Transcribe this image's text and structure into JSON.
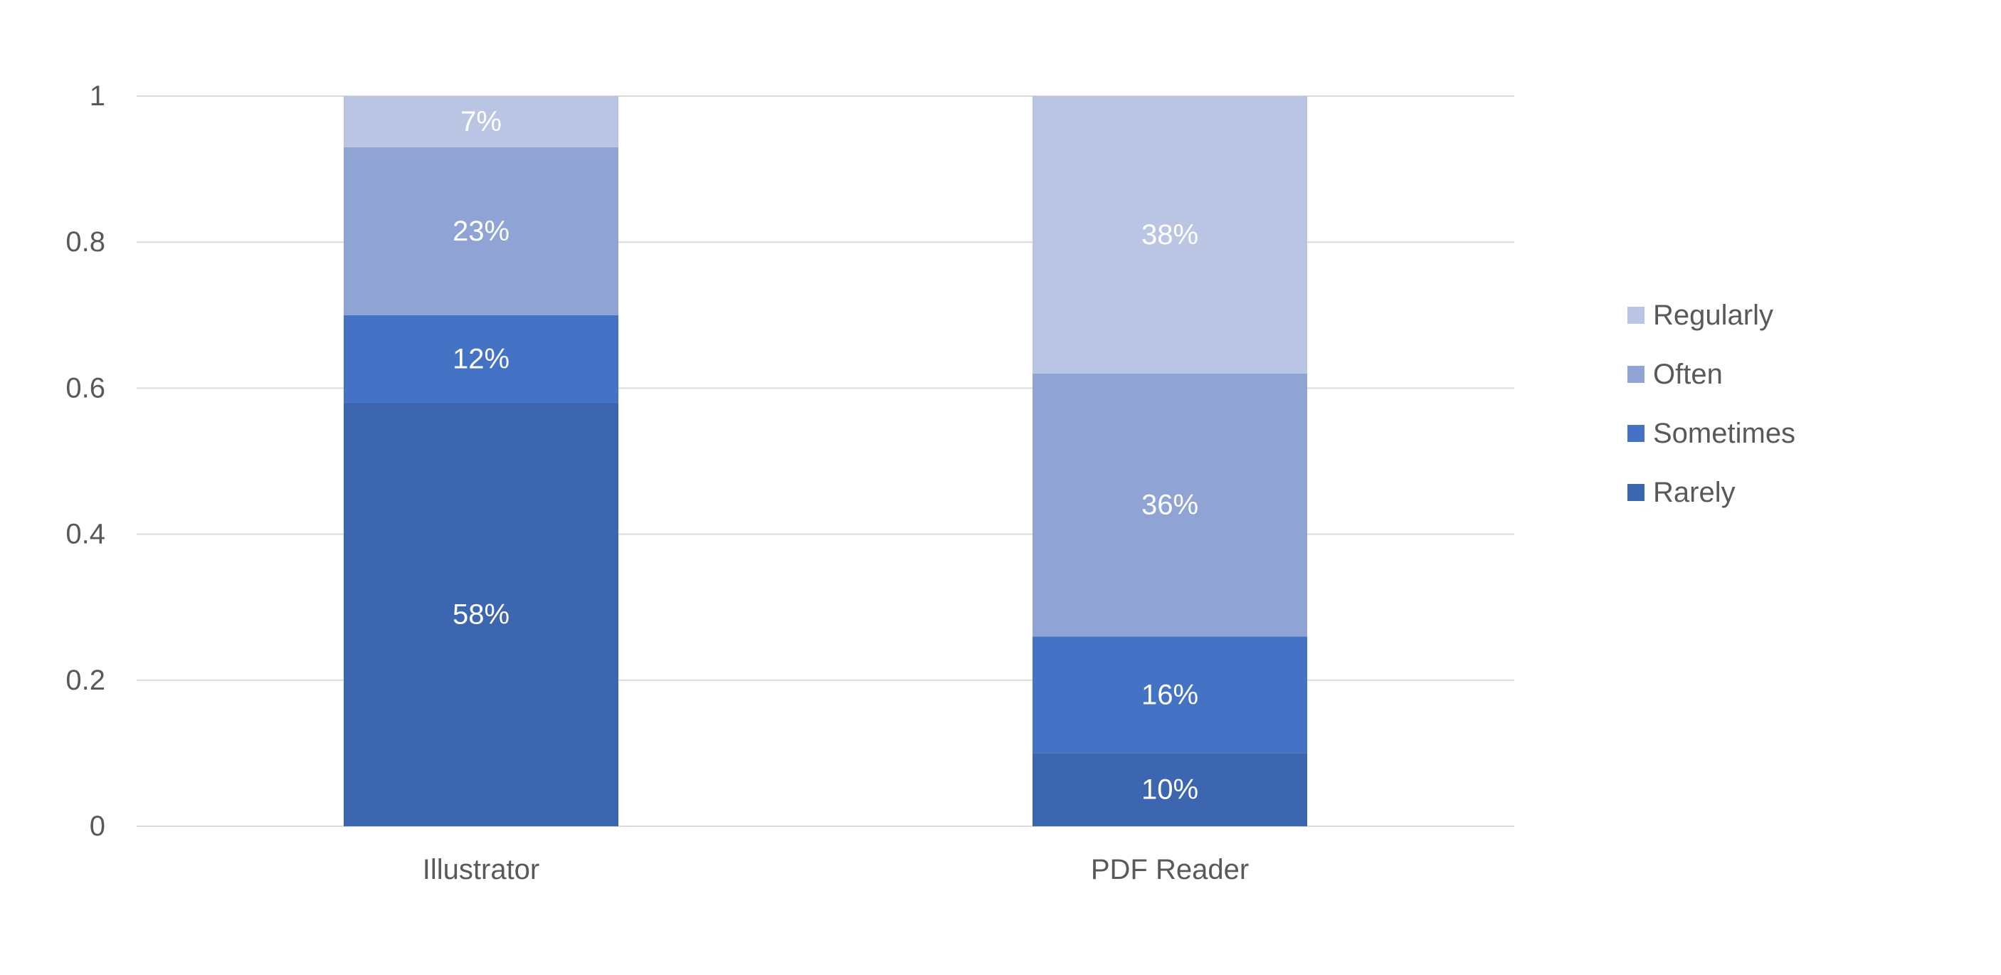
{
  "chart_data": {
    "type": "bar",
    "stacked": true,
    "title": "",
    "xlabel": "",
    "ylabel": "",
    "categories": [
      "Illustrator",
      "PDF Reader"
    ],
    "ylim": [
      0,
      1
    ],
    "yticks": [
      0,
      0.2,
      0.4,
      0.6,
      0.8,
      1
    ],
    "ytick_labels": [
      "0",
      "0.2",
      "0.4",
      "0.6",
      "0.8",
      "1"
    ],
    "grid": true,
    "legend": "right",
    "series": [
      {
        "name": "Rarely",
        "values": [
          0.58,
          0.1
        ],
        "labels": [
          "58%",
          "10%"
        ],
        "color": "#3C66AF"
      },
      {
        "name": "Sometimes",
        "values": [
          0.12,
          0.16
        ],
        "labels": [
          "12%",
          "16%"
        ],
        "color": "#4472C4"
      },
      {
        "name": "Often",
        "values": [
          0.23,
          0.36
        ],
        "labels": [
          "23%",
          "36%"
        ],
        "color": "#8FA4D5"
      },
      {
        "name": "Regularly",
        "values": [
          0.07,
          0.38
        ],
        "labels": [
          "7%",
          "38%"
        ],
        "color": "#BAC4E3"
      }
    ],
    "legend_order": [
      "Regularly",
      "Often",
      "Sometimes",
      "Rarely"
    ],
    "colors": {
      "grid": "#D9D9D9",
      "axis_text": "#595959",
      "label_text": "#FFFFFF"
    }
  }
}
